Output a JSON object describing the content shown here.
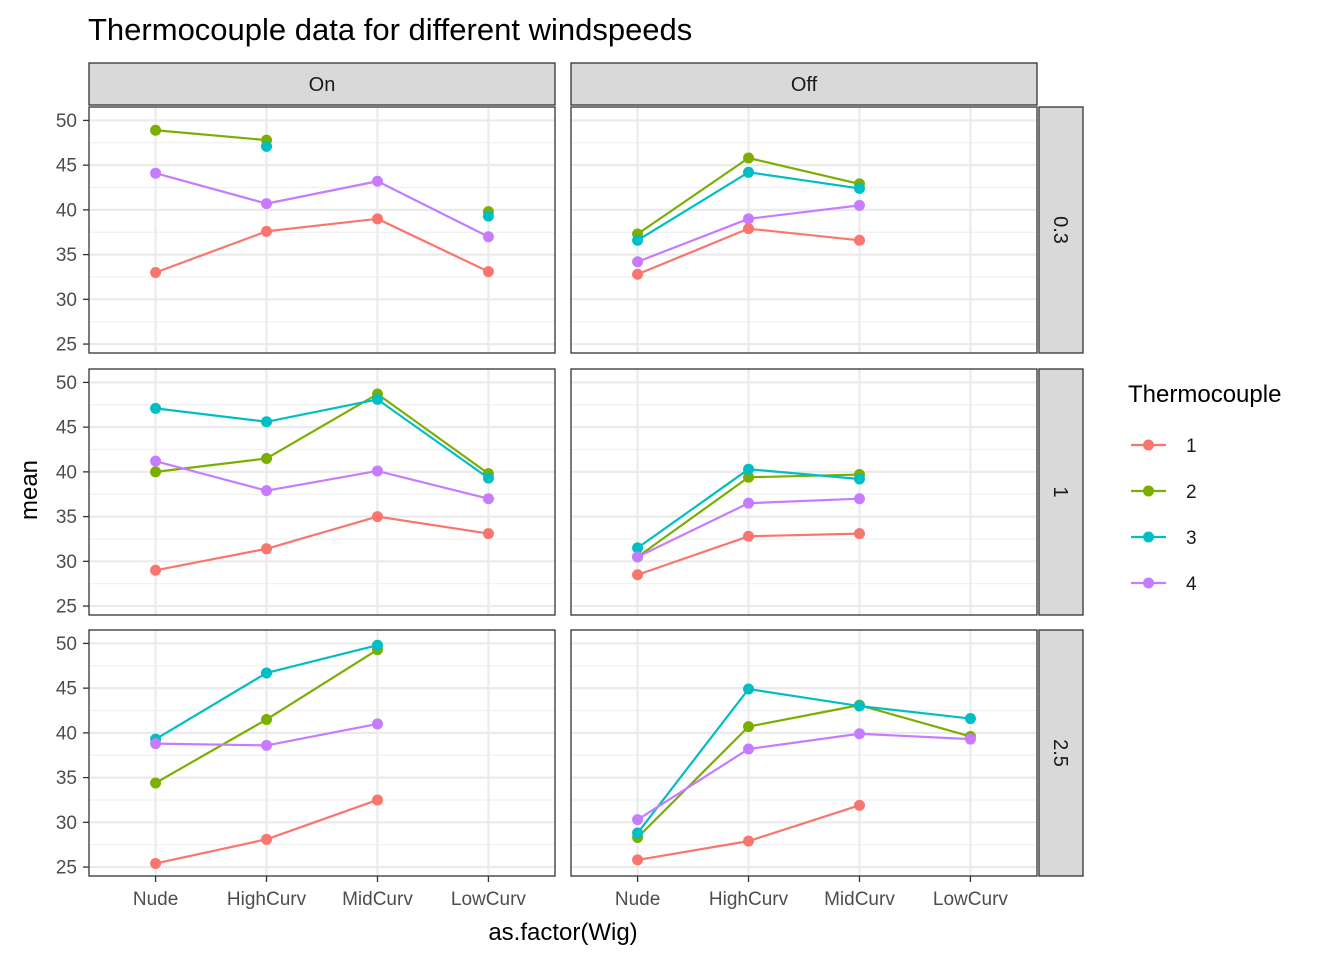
{
  "chart_data": {
    "type": "line",
    "title": "Thermocouple data for different windspeeds",
    "xlabel": "as.factor(Wig)",
    "ylabel": "mean",
    "categories": [
      "Nude",
      "HighCurv",
      "MidCurv",
      "LowCurv"
    ],
    "ylim": [
      24,
      51.5
    ],
    "yticks": [
      25,
      30,
      35,
      40,
      45,
      50
    ],
    "grid": true,
    "facet_columns": [
      "On",
      "Off"
    ],
    "facet_rows": [
      "0.3",
      "1",
      "2.5"
    ],
    "legend": {
      "title": "Thermocouple",
      "position": "right",
      "entries": [
        {
          "label": "1",
          "color": "#F8766D"
        },
        {
          "label": "2",
          "color": "#7CAE00"
        },
        {
          "label": "3",
          "color": "#00BFC4"
        },
        {
          "label": "4",
          "color": "#C77CFF"
        }
      ]
    },
    "panels": [
      {
        "column": "On",
        "row": "0.3",
        "series": [
          {
            "name": "1",
            "values": [
              33.0,
              37.6,
              39.0,
              33.1
            ]
          },
          {
            "name": "2",
            "values": [
              48.9,
              47.8,
              null,
              39.8
            ]
          },
          {
            "name": "3",
            "values": [
              null,
              47.1,
              null,
              39.3
            ]
          },
          {
            "name": "4",
            "values": [
              44.1,
              40.7,
              43.2,
              37.0
            ]
          }
        ]
      },
      {
        "column": "Off",
        "row": "0.3",
        "series": [
          {
            "name": "1",
            "values": [
              32.8,
              37.9,
              36.6,
              null
            ]
          },
          {
            "name": "2",
            "values": [
              37.3,
              45.8,
              42.9,
              null
            ]
          },
          {
            "name": "3",
            "values": [
              36.6,
              44.2,
              42.4,
              null
            ]
          },
          {
            "name": "4",
            "values": [
              34.2,
              39.0,
              40.5,
              null
            ]
          }
        ]
      },
      {
        "column": "On",
        "row": "1",
        "series": [
          {
            "name": "1",
            "values": [
              29.0,
              31.4,
              35.0,
              33.1
            ]
          },
          {
            "name": "2",
            "values": [
              40.0,
              41.5,
              48.7,
              39.8
            ]
          },
          {
            "name": "3",
            "values": [
              47.1,
              45.6,
              48.1,
              39.3
            ]
          },
          {
            "name": "4",
            "values": [
              41.2,
              37.9,
              40.1,
              37.0
            ]
          }
        ]
      },
      {
        "column": "Off",
        "row": "1",
        "series": [
          {
            "name": "1",
            "values": [
              28.5,
              32.8,
              33.1,
              null
            ]
          },
          {
            "name": "2",
            "values": [
              30.5,
              39.4,
              39.7,
              null
            ]
          },
          {
            "name": "3",
            "values": [
              31.5,
              40.3,
              39.2,
              null
            ]
          },
          {
            "name": "4",
            "values": [
              30.5,
              36.5,
              37.0,
              null
            ]
          }
        ]
      },
      {
        "column": "On",
        "row": "2.5",
        "series": [
          {
            "name": "1",
            "values": [
              25.4,
              28.1,
              32.5,
              null
            ]
          },
          {
            "name": "2",
            "values": [
              34.4,
              41.5,
              49.3,
              null
            ]
          },
          {
            "name": "3",
            "values": [
              39.3,
              46.7,
              49.8,
              null
            ]
          },
          {
            "name": "4",
            "values": [
              38.8,
              38.6,
              41.0,
              null
            ]
          }
        ]
      },
      {
        "column": "Off",
        "row": "2.5",
        "series": [
          {
            "name": "1",
            "values": [
              25.8,
              27.9,
              31.9,
              null
            ]
          },
          {
            "name": "2",
            "values": [
              28.3,
              40.7,
              43.1,
              39.6
            ]
          },
          {
            "name": "3",
            "values": [
              28.8,
              44.9,
              43.0,
              41.6
            ]
          },
          {
            "name": "4",
            "values": [
              30.3,
              38.2,
              39.9,
              39.3
            ]
          }
        ]
      }
    ]
  }
}
